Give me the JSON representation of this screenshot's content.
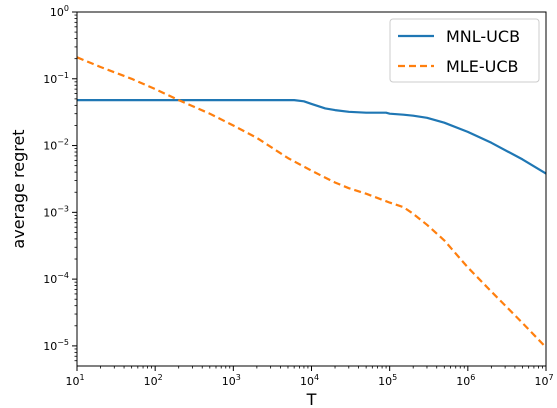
{
  "chart_data": {
    "type": "line",
    "xlabel": "T",
    "ylabel": "average regret",
    "xscale": "log",
    "yscale": "log",
    "xlim": [
      10,
      10000000
    ],
    "ylim": [
      5e-06,
      1
    ],
    "x_ticks": [
      {
        "base": "10",
        "exp": "1"
      },
      {
        "base": "10",
        "exp": "2"
      },
      {
        "base": "10",
        "exp": "3"
      },
      {
        "base": "10",
        "exp": "4"
      },
      {
        "base": "10",
        "exp": "5"
      },
      {
        "base": "10",
        "exp": "6"
      },
      {
        "base": "10",
        "exp": "7"
      }
    ],
    "y_ticks": [
      {
        "base": "10",
        "exp": "0"
      },
      {
        "base": "10",
        "exp": "−1"
      },
      {
        "base": "10",
        "exp": "−2"
      },
      {
        "base": "10",
        "exp": "−3"
      },
      {
        "base": "10",
        "exp": "−4"
      },
      {
        "base": "10",
        "exp": "−5"
      }
    ],
    "grid": false,
    "legend_position": "top-right",
    "series": [
      {
        "name": "MNL-UCB",
        "color": "#1f77b4",
        "style": "solid",
        "x": [
          10,
          100,
          1000,
          3000,
          6000,
          8000,
          10000,
          15000,
          20000,
          30000,
          50000,
          70000,
          90000,
          100000,
          150000,
          200000,
          300000,
          500000,
          1000000,
          2000000,
          5000000,
          10000000
        ],
        "y": [
          0.048,
          0.048,
          0.048,
          0.048,
          0.048,
          0.046,
          0.042,
          0.036,
          0.034,
          0.032,
          0.031,
          0.031,
          0.031,
          0.03,
          0.029,
          0.028,
          0.026,
          0.022,
          0.016,
          0.011,
          0.0062,
          0.0038
        ]
      },
      {
        "name": "MLE-UCB",
        "color": "#ff7f0e",
        "style": "dashed",
        "x": [
          10,
          20,
          50,
          100,
          200,
          500,
          1000,
          2000,
          5000,
          10000,
          20000,
          30000,
          50000,
          100000,
          150000,
          200000,
          300000,
          500000,
          1000000,
          2000000,
          5000000,
          10000000
        ],
        "y": [
          0.21,
          0.15,
          0.1,
          0.07,
          0.048,
          0.03,
          0.02,
          0.013,
          0.0065,
          0.0042,
          0.0028,
          0.0023,
          0.0019,
          0.0014,
          0.0012,
          0.00095,
          0.00065,
          0.00038,
          0.00015,
          6.5e-05,
          2.2e-05,
          9.5e-06
        ]
      }
    ]
  }
}
